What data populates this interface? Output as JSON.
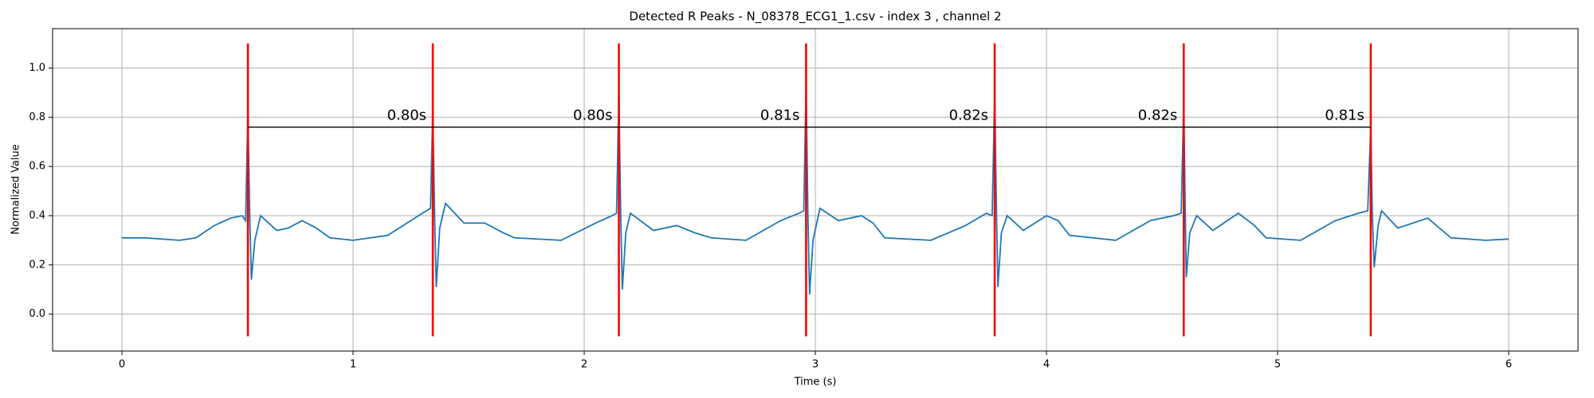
{
  "chart_data": {
    "type": "line",
    "title": "Detected R Peaks - N_08378_ECG1_1.csv - index 3 , channel 2",
    "xlabel": "Time (s)",
    "ylabel": "Normalized Value",
    "x": [
      0,
      0.1,
      0.25,
      0.32,
      0.4,
      0.47,
      0.52,
      0.535,
      0.545,
      0.553,
      0.56,
      0.575,
      0.6,
      0.67,
      0.72,
      0.78,
      0.84,
      0.9,
      1.0,
      1.15,
      1.25,
      1.3,
      1.335,
      1.345,
      1.353,
      1.36,
      1.375,
      1.4,
      1.48,
      1.57,
      1.65,
      1.7,
      1.9,
      2.05,
      2.12,
      2.14,
      2.15,
      2.158,
      2.165,
      2.18,
      2.2,
      2.3,
      2.4,
      2.48,
      2.55,
      2.7,
      2.85,
      2.93,
      2.95,
      2.96,
      2.968,
      2.975,
      2.99,
      3.02,
      3.1,
      3.2,
      3.25,
      3.3,
      3.5,
      3.65,
      3.74,
      3.765,
      3.776,
      3.784,
      3.79,
      3.805,
      3.83,
      3.9,
      4.0,
      4.05,
      4.1,
      4.3,
      4.45,
      4.55,
      4.583,
      4.594,
      4.6,
      4.605,
      4.62,
      4.65,
      4.72,
      4.83,
      4.9,
      4.95,
      5.1,
      5.25,
      5.35,
      5.39,
      5.403,
      5.41,
      5.418,
      5.435,
      5.45,
      5.52,
      5.65,
      5.7,
      5.75,
      5.9,
      6.0
    ],
    "values": [
      0.31,
      0.31,
      0.3,
      0.31,
      0.36,
      0.39,
      0.4,
      0.38,
      0.82,
      0.4,
      0.14,
      0.3,
      0.4,
      0.34,
      0.35,
      0.38,
      0.35,
      0.31,
      0.3,
      0.32,
      0.38,
      0.41,
      0.43,
      0.83,
      0.4,
      0.11,
      0.35,
      0.45,
      0.37,
      0.37,
      0.33,
      0.31,
      0.3,
      0.37,
      0.4,
      0.41,
      0.9,
      0.4,
      0.1,
      0.33,
      0.41,
      0.34,
      0.36,
      0.33,
      0.31,
      0.3,
      0.38,
      0.41,
      0.42,
      0.93,
      0.4,
      0.08,
      0.3,
      0.43,
      0.38,
      0.4,
      0.37,
      0.31,
      0.3,
      0.36,
      0.41,
      0.4,
      0.9,
      0.4,
      0.11,
      0.33,
      0.4,
      0.34,
      0.4,
      0.38,
      0.32,
      0.3,
      0.38,
      0.4,
      0.41,
      0.87,
      0.45,
      0.15,
      0.33,
      0.4,
      0.34,
      0.41,
      0.36,
      0.31,
      0.3,
      0.38,
      0.41,
      0.42,
      0.76,
      0.4,
      0.19,
      0.36,
      0.42,
      0.35,
      0.39,
      0.35,
      0.31,
      0.3,
      0.305
    ],
    "color": "#1f77b4",
    "peaks": {
      "x": [
        0.545,
        1.345,
        2.15,
        2.96,
        3.776,
        4.594,
        5.403
      ],
      "ymin": -0.09,
      "ymax": 1.1,
      "color": "#ff0000"
    },
    "intervals": {
      "values": [
        0.8,
        0.8,
        0.81,
        0.82,
        0.82,
        0.81
      ],
      "value_labels": [
        "0.80s",
        "0.80s",
        "0.81s",
        "0.82s",
        "0.82s",
        "0.81s"
      ],
      "y": 0.76,
      "color": "#000000"
    },
    "xlim": [
      -0.3,
      6.3
    ],
    "ylim": [
      -0.15,
      1.16
    ],
    "xticks": [
      0,
      1,
      2,
      3,
      4,
      5,
      6
    ],
    "yticks": [
      {
        "value": 0,
        "label": "0.0"
      },
      0.2,
      0.4,
      0.6,
      0.8,
      {
        "value": 1,
        "label": "1.0"
      }
    ],
    "grid": true
  }
}
